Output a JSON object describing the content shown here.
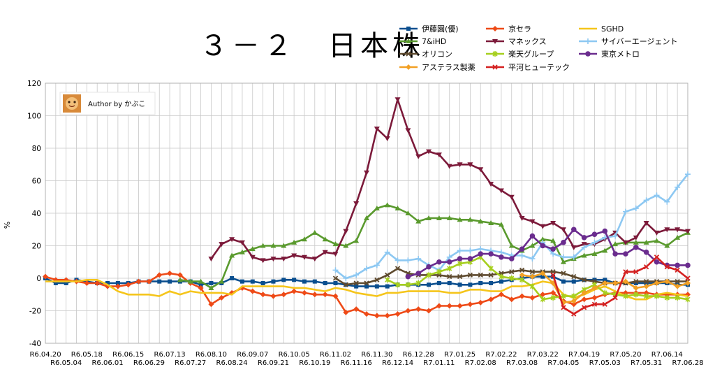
{
  "chart_data": {
    "type": "line",
    "title": "３－２　日本株",
    "ylabel": "%",
    "ylim": [
      -40,
      120
    ],
    "yticks": [
      -40,
      -20,
      0,
      20,
      40,
      60,
      80,
      100,
      120
    ],
    "grid": true,
    "legend_position": "top-right",
    "annotation": "Author by かぶこ",
    "x": [
      "R6.04.20",
      "R6.04.27",
      "R6.05.04",
      "R6.05.11",
      "R6.05.18",
      "R6.05.25",
      "R6.06.01",
      "R6.06.08",
      "R6.06.15",
      "R6.06.22",
      "R6.06.29",
      "R6.07.06",
      "R6.07.13",
      "R6.07.20",
      "R6.07.27",
      "R6.08.03",
      "R6.08.10",
      "R6.08.17",
      "R6.08.24",
      "R6.08.31",
      "R6.09.07",
      "R6.09.14",
      "R6.09.21",
      "R6.09.28",
      "R6.10.05",
      "R6.10.12",
      "R6.10.19",
      "R6.10.26",
      "R6.11.02",
      "R6.11.09",
      "R6.11.16",
      "R6.11.23",
      "R6.11.30",
      "R6.12.07",
      "R6.12.14",
      "R6.12.21",
      "R6.12.28",
      "R7.01.04",
      "R7.01.11",
      "R7.01.18",
      "R7.01.25",
      "R7.02.01",
      "R7.02.08",
      "R7.02.15",
      "R7.02.22",
      "R7.03.01",
      "R7.03.08",
      "R7.03.15",
      "R7.03.22",
      "R7.03.29",
      "R7.04.05",
      "R7.04.12",
      "R7.04.19",
      "R7.04.26",
      "R7.05.03",
      "R7.05.10",
      "R7.05.20",
      "R7.05.24",
      "R7.05.31",
      "R7.06.07",
      "R7.06.14",
      "R7.06.21",
      "R7.06.28"
    ],
    "xtick_labels_upper": [
      "R6.04.20",
      "R6.05.18",
      "R6.06.15",
      "R6.07.13",
      "R6.08.10",
      "R6.09.07",
      "R6.10.05",
      "R6.11.02",
      "R6.11.30",
      "R6.12.28",
      "R7.01.25",
      "R7.02.22",
      "R7.03.22",
      "R7.04.19",
      "R7.05.20",
      "R7.06.14"
    ],
    "xtick_labels_lower": [
      "R6.05.04",
      "R6.06.01",
      "R6.06.29",
      "R6.07.27",
      "R6.08.24",
      "R6.09.21",
      "R6.10.19",
      "R6.11.16",
      "R6.12.14",
      "R7.01.11",
      "R7.02.08",
      "R7.03.08",
      "R7.04.05",
      "R7.05.03",
      "R7.05.31",
      "R7.06.28"
    ],
    "series": [
      {
        "name": "伊藤園(優)",
        "color": "#0b4f8f",
        "marker": "square",
        "values": [
          0,
          -3,
          -3,
          -1,
          -2,
          -3,
          -3,
          -3,
          -3,
          -2,
          -2,
          -2,
          -2,
          -2,
          -2,
          -4,
          -3,
          -3,
          0,
          -2,
          -2,
          -3,
          -2,
          -1,
          -1,
          -2,
          -2,
          -3,
          -3,
          -4,
          -5,
          -5,
          -5,
          -5,
          -4,
          -4,
          -4,
          -4,
          -3,
          -3,
          -4,
          -4,
          -3,
          -3,
          -2,
          -1,
          0,
          1,
          1,
          1,
          -2,
          -2,
          -1,
          -1,
          -1,
          -3,
          -3,
          -3,
          -3,
          -3,
          -3,
          -4,
          -4
        ]
      },
      {
        "name": "京セラ",
        "color": "#ee4a17",
        "marker": "diamond",
        "values": [
          1,
          -1,
          -1,
          -2,
          -3,
          -3,
          -5,
          -5,
          -4,
          -2,
          -2,
          2,
          3,
          2,
          -3,
          -6,
          -16,
          -12,
          -9,
          -6,
          -8,
          -10,
          -11,
          -10,
          -8,
          -9,
          -10,
          -10,
          -11,
          -21,
          -19,
          -22,
          -23,
          -23,
          -22,
          -20,
          -19,
          -20,
          -17,
          -17,
          -17,
          -16,
          -15,
          -13,
          -10,
          -13,
          -11,
          -12,
          -10,
          -9,
          -14,
          -16,
          -13,
          -12,
          -10,
          -9,
          -9,
          -9,
          -9,
          -10,
          -10,
          -10,
          -10
        ]
      },
      {
        "name": "SGHD",
        "color": "#f5c51b",
        "marker": "none",
        "values": [
          -2,
          -2,
          -2,
          -2,
          -1,
          -1,
          -4,
          -8,
          -10,
          -10,
          -10,
          -11,
          -8,
          -10,
          -8,
          -9,
          -9,
          -9,
          -10,
          -5,
          -5,
          -5,
          -5,
          -5,
          -6,
          -6,
          -7,
          -8,
          -6,
          -7,
          -9,
          -10,
          -11,
          -9,
          -9,
          -8,
          -8,
          -8,
          -8,
          -9,
          -9,
          -7,
          -7,
          -8,
          -8,
          -5,
          -5,
          -4,
          -2,
          -3,
          -10,
          -12,
          -10,
          -7,
          -5,
          -8,
          -11,
          -13,
          -13,
          -10,
          -9,
          -10,
          -11
        ]
      },
      {
        "name": "7&iHD",
        "color": "#5a9a2e",
        "marker": "triangle",
        "values": [
          null,
          null,
          null,
          null,
          null,
          null,
          null,
          null,
          null,
          null,
          null,
          null,
          null,
          -1,
          -2,
          -2,
          -6,
          -2,
          14,
          16,
          18,
          20,
          20,
          20,
          22,
          24,
          28,
          24,
          21,
          20,
          23,
          37,
          43,
          45,
          43,
          40,
          35,
          37,
          37,
          37,
          36,
          36,
          35,
          34,
          33,
          20,
          17,
          20,
          24,
          23,
          10,
          12,
          14,
          15,
          17,
          21,
          22,
          22,
          22,
          23,
          20,
          25,
          28
        ]
      },
      {
        "name": "マネックス",
        "color": "#7c1a3a",
        "marker": "triangle-down",
        "values": [
          null,
          null,
          null,
          null,
          null,
          null,
          null,
          null,
          null,
          null,
          null,
          null,
          null,
          null,
          null,
          null,
          12,
          21,
          24,
          22,
          13,
          11,
          12,
          12,
          14,
          13,
          12,
          16,
          15,
          29,
          46,
          65,
          92,
          86,
          110,
          91,
          75,
          78,
          76,
          69,
          70,
          70,
          67,
          58,
          54,
          50,
          37,
          35,
          32,
          34,
          30,
          19,
          21,
          21,
          24,
          28,
          22,
          25,
          34,
          28,
          30,
          30,
          29
        ]
      },
      {
        "name": "サイバーエージェント",
        "color": "#8dc8f2",
        "marker": "plus",
        "values": [
          null,
          null,
          null,
          null,
          null,
          null,
          null,
          null,
          null,
          null,
          null,
          null,
          null,
          null,
          null,
          null,
          null,
          null,
          null,
          null,
          null,
          null,
          null,
          null,
          null,
          null,
          null,
          null,
          5,
          0,
          2,
          6,
          8,
          16,
          11,
          11,
          12,
          8,
          5,
          13,
          17,
          17,
          18,
          17,
          16,
          14,
          14,
          12,
          22,
          15,
          13,
          13,
          19,
          22,
          25,
          26,
          41,
          43,
          48,
          51,
          47,
          56,
          64
        ]
      },
      {
        "name": "オリコン",
        "color": "#5e4a2e",
        "marker": "x",
        "values": [
          null,
          null,
          null,
          null,
          null,
          null,
          null,
          null,
          null,
          null,
          null,
          null,
          null,
          null,
          null,
          null,
          null,
          null,
          null,
          null,
          null,
          null,
          null,
          null,
          null,
          null,
          null,
          null,
          0,
          -4,
          -3,
          -3,
          -1,
          2,
          6,
          3,
          2,
          2,
          2,
          1,
          1,
          2,
          2,
          2,
          3,
          4,
          5,
          4,
          4,
          4,
          3,
          1,
          -1,
          -2,
          -3,
          -3,
          -3,
          -2,
          -2,
          -2,
          -2,
          -2,
          -2
        ]
      },
      {
        "name": "楽天グループ",
        "color": "#a6cf1e",
        "marker": "star",
        "values": [
          null,
          null,
          null,
          null,
          null,
          null,
          null,
          null,
          null,
          null,
          null,
          null,
          null,
          null,
          null,
          null,
          null,
          null,
          null,
          null,
          null,
          null,
          null,
          null,
          null,
          null,
          null,
          null,
          null,
          null,
          null,
          null,
          null,
          -1,
          -4,
          -4,
          -3,
          2,
          4,
          6,
          9,
          10,
          13,
          6,
          1,
          0,
          -1,
          -5,
          -13,
          -12,
          -11,
          -11,
          -7,
          -4,
          -9,
          -10,
          -11,
          -10,
          -11,
          -11,
          -12,
          -12,
          -13
        ]
      },
      {
        "name": "東京メトロ",
        "color": "#6a2c8e",
        "marker": "circle",
        "values": [
          null,
          null,
          null,
          null,
          null,
          null,
          null,
          null,
          null,
          null,
          null,
          null,
          null,
          null,
          null,
          null,
          null,
          null,
          null,
          null,
          null,
          null,
          null,
          null,
          null,
          null,
          null,
          null,
          null,
          null,
          null,
          null,
          null,
          null,
          null,
          null,
          null,
          null,
          null,
          null,
          null,
          null,
          null,
          null,
          null,
          null,
          null,
          null,
          null,
          null,
          null,
          null,
          null,
          null,
          null,
          null,
          null,
          null,
          null,
          null,
          null,
          null,
          null
        ]
      },
      {
        "name": "アステラス製薬",
        "color": "#f2a024",
        "marker": "diamond",
        "values": [
          null,
          null,
          null,
          null,
          null,
          null,
          null,
          null,
          null,
          null,
          null,
          null,
          null,
          null,
          null,
          null,
          null,
          null,
          null,
          null,
          null,
          null,
          null,
          null,
          null,
          null,
          null,
          null,
          null,
          null,
          null,
          null,
          null,
          null,
          null,
          null,
          null,
          null,
          null,
          null,
          null,
          null,
          null,
          null,
          null,
          null,
          2,
          1,
          3,
          -3,
          -15,
          -14,
          -9,
          -6,
          -3,
          -3,
          -2,
          -6,
          -5,
          -3,
          -2,
          -5,
          -3
        ]
      },
      {
        "name": "平河ヒューテック",
        "color": "#d42020",
        "marker": "x",
        "values": [
          null,
          null,
          null,
          null,
          null,
          null,
          null,
          null,
          null,
          null,
          null,
          null,
          null,
          null,
          null,
          null,
          null,
          null,
          null,
          null,
          null,
          null,
          null,
          null,
          null,
          null,
          null,
          null,
          null,
          null,
          null,
          null,
          null,
          null,
          null,
          null,
          null,
          null,
          null,
          null,
          null,
          null,
          null,
          null,
          null,
          null,
          null,
          null,
          null,
          2,
          -18,
          -22,
          -18,
          -16,
          -16,
          -12,
          4,
          4,
          7,
          13,
          7,
          5,
          0
        ]
      }
    ],
    "metro_values": [
      null,
      null,
      null,
      null,
      null,
      null,
      null,
      null,
      null,
      null,
      null,
      null,
      null,
      null,
      null,
      null,
      null,
      null,
      null,
      null,
      null,
      null,
      null,
      null,
      null,
      null,
      null,
      null,
      null,
      null,
      null,
      null,
      null,
      null,
      null,
      1,
      3,
      7,
      10,
      10,
      12,
      12,
      15,
      15,
      13,
      12,
      18,
      26,
      20,
      18,
      22,
      30,
      25,
      27,
      29,
      15,
      15,
      19,
      16,
      10,
      8,
      8,
      8
    ]
  }
}
